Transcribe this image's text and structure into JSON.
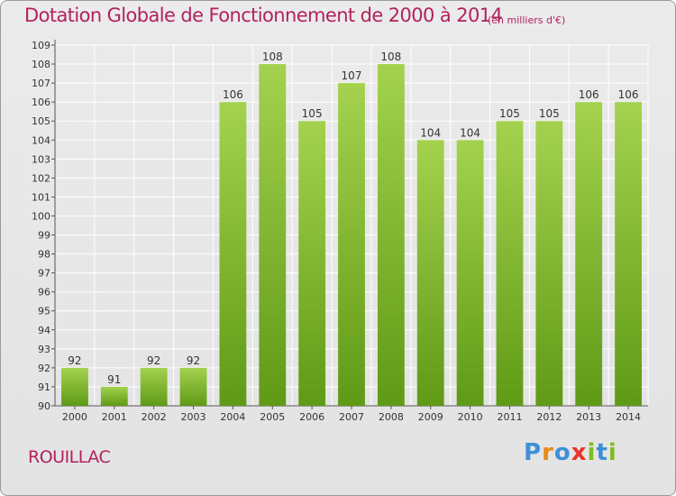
{
  "header": {
    "title": "Dotation Globale de Fonctionnement de 2000 à 2014",
    "subtitle": "(en milliers d'€)"
  },
  "footer": {
    "commune": "ROUILLAC",
    "brand": "Proxiti"
  },
  "colors": {
    "title": "#b2225e",
    "bar_light": "#a4d24e",
    "bar_dark": "#5f9a16",
    "background": "#e6e6e6",
    "grid": "#ffffff",
    "logo": [
      "#3f8fd8",
      "#e98a1d",
      "#3f8fd8",
      "#e8322b",
      "#7fbb22",
      "#3f8fd8",
      "#7fbb22"
    ]
  },
  "chart_data": {
    "type": "bar",
    "title": "Dotation Globale de Fonctionnement de 2000 à 2014",
    "subtitle": "(en milliers d'€)",
    "categories": [
      "2000",
      "2001",
      "2002",
      "2003",
      "2004",
      "2005",
      "2006",
      "2007",
      "2008",
      "2009",
      "2010",
      "2011",
      "2012",
      "2013",
      "2014"
    ],
    "values": [
      92,
      91,
      92,
      92,
      106,
      108,
      105,
      107,
      108,
      104,
      104,
      105,
      105,
      106,
      106
    ],
    "ylim": [
      90,
      109
    ],
    "yticks": [
      90,
      91,
      92,
      93,
      94,
      95,
      96,
      97,
      98,
      99,
      100,
      101,
      102,
      103,
      104,
      105,
      106,
      107,
      108,
      109
    ],
    "grid": true,
    "data_labels": true
  }
}
